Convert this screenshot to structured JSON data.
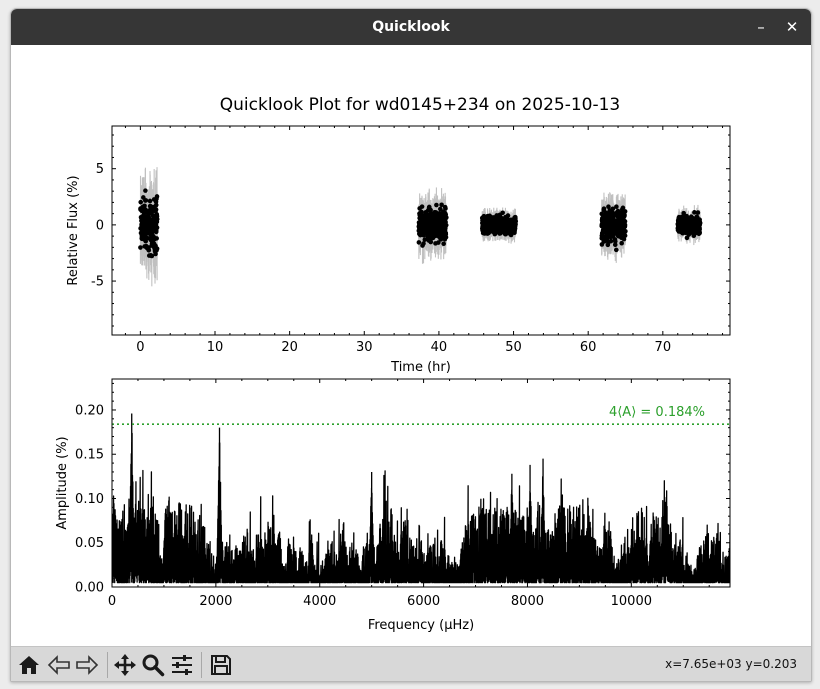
{
  "window": {
    "title": "Quicklook",
    "minimize_label": "–",
    "close_label": "✕"
  },
  "figure": {
    "title": "Quicklook Plot for wd0145+234 on 2025-10-13"
  },
  "toolbar": {
    "icons": [
      "home-icon",
      "back-arrow-icon",
      "forward-arrow-icon",
      "pan-arrows-icon",
      "zoom-magnifier-icon",
      "configure-sliders-icon",
      "save-floppy-icon"
    ],
    "coords": "x=7.65e+03 y=0.203"
  },
  "chart_data": [
    {
      "type": "scatter",
      "title": "Quicklook Plot for wd0145+234 on 2025-10-13",
      "xlabel": "Time (hr)",
      "ylabel": "Relative Flux (%)",
      "xlim": [
        -3.8,
        79.0
      ],
      "ylim": [
        -9.8,
        8.8
      ],
      "xticks": [
        0,
        10,
        20,
        30,
        40,
        50,
        60,
        70
      ],
      "yticks": [
        -5,
        0,
        5
      ],
      "error_bars": true,
      "marker_color": "#000000",
      "errorbar_color": "#c0c0c0",
      "segments": [
        {
          "t_start": 0.0,
          "t_end": 2.3,
          "scatter_pct": 2.0
        },
        {
          "t_start": 37.3,
          "t_end": 41.0,
          "scatter_pct": 1.2
        },
        {
          "t_start": 45.8,
          "t_end": 50.3,
          "scatter_pct": 0.6
        },
        {
          "t_start": 61.8,
          "t_end": 65.0,
          "scatter_pct": 1.2
        },
        {
          "t_start": 72.0,
          "t_end": 75.0,
          "scatter_pct": 0.6
        }
      ]
    },
    {
      "type": "line",
      "xlabel": "Frequency (μHz)",
      "ylabel": "Amplitude (%)",
      "xlim": [
        0,
        11900
      ],
      "ylim": [
        0,
        0.235
      ],
      "xticks": [
        0,
        2000,
        4000,
        6000,
        8000,
        10000
      ],
      "yticks": [
        "0.00",
        "0.05",
        "0.10",
        "0.15",
        "0.20"
      ],
      "line_color": "#000000",
      "threshold": {
        "value": 0.184,
        "label": "4⟨A⟩ = 0.184%",
        "color": "#2ca02c",
        "style": "dotted"
      },
      "peaks": [
        {
          "freq": 380,
          "amp": 0.196
        },
        {
          "freq": 2070,
          "amp": 0.18
        },
        {
          "freq": 8300,
          "amp": 0.145
        },
        {
          "freq": 8050,
          "amp": 0.138
        },
        {
          "freq": 5000,
          "amp": 0.13
        },
        {
          "freq": 7700,
          "amp": 0.128
        }
      ]
    }
  ]
}
